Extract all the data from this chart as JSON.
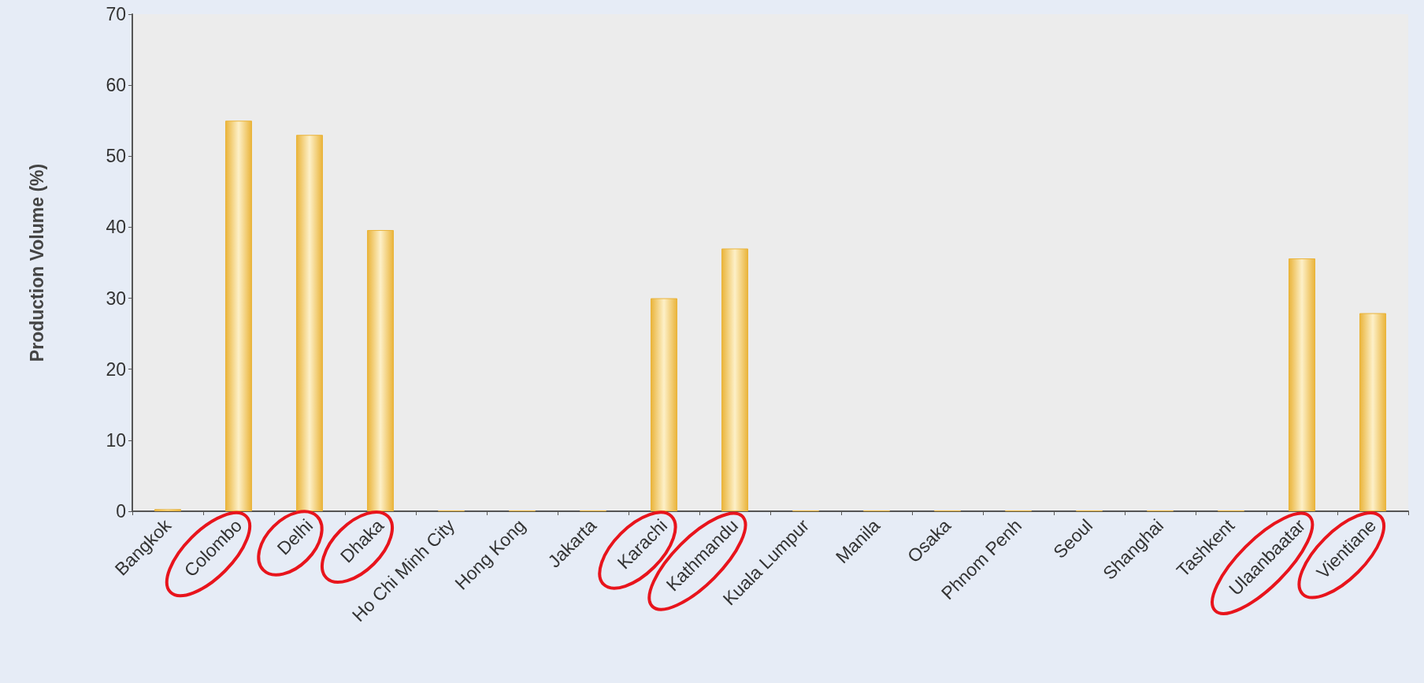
{
  "chart_data": {
    "type": "bar",
    "ylabel": "Production Volume (%)",
    "categories": [
      "Bangkok",
      "Colombo",
      "Delhi",
      "Dhaka",
      "Ho Chi Minh City",
      "Hong Kong",
      "Jakarta",
      "Karachi",
      "Kathmandu",
      "Kuala Lumpur",
      "Manila",
      "Osaka",
      "Phnom Penh",
      "Seoul",
      "Shanghai",
      "Tashkent",
      "Ulaanbaatar",
      "Vientiane"
    ],
    "values": [
      0.3,
      55,
      53,
      39.6,
      0.1,
      0.1,
      0.1,
      30,
      37,
      0.1,
      0.1,
      0.1,
      0.1,
      0.1,
      0.1,
      0.1,
      35.6,
      27.9
    ],
    "color": "#eab43a",
    "ylim": [
      0,
      70
    ],
    "yticks": [
      0,
      10,
      20,
      30,
      40,
      50,
      60,
      70
    ],
    "grid": false
  }
}
